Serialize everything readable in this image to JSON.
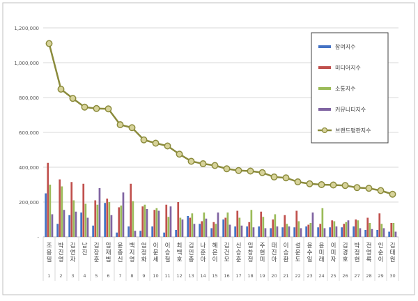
{
  "chart_data": {
    "type": "bar",
    "categories": [
      {
        "rank": "1",
        "name": "조용필"
      },
      {
        "rank": "2",
        "name": "박진영"
      },
      {
        "rank": "3",
        "name": "김연자"
      },
      {
        "rank": "4",
        "name": "남진"
      },
      {
        "rank": "5",
        "name": "김장훈"
      },
      {
        "rank": "6",
        "name": "임재범"
      },
      {
        "rank": "7",
        "name": "윤종신"
      },
      {
        "rank": "8",
        "name": "백지영"
      },
      {
        "rank": "9",
        "name": "엄정화"
      },
      {
        "rank": "10",
        "name": "이문세"
      },
      {
        "rank": "11",
        "name": "이승철"
      },
      {
        "rank": "12",
        "name": "최백호"
      },
      {
        "rank": "13",
        "name": "김민종"
      },
      {
        "rank": "14",
        "name": "나훈아"
      },
      {
        "rank": "15",
        "name": "혜은이"
      },
      {
        "rank": "16",
        "name": "김건모"
      },
      {
        "rank": "17",
        "name": "신승훈"
      },
      {
        "rank": "18",
        "name": "임창정"
      },
      {
        "rank": "19",
        "name": "주현미"
      },
      {
        "rank": "20",
        "name": "태진아"
      },
      {
        "rank": "21",
        "name": "이승환"
      },
      {
        "rank": "22",
        "name": "설운도"
      },
      {
        "rank": "23",
        "name": "윤수일"
      },
      {
        "rank": "24",
        "name": "윤미래"
      },
      {
        "rank": "25",
        "name": "이미자"
      },
      {
        "rank": "26",
        "name": "김경호"
      },
      {
        "rank": "27",
        "name": "박정현"
      },
      {
        "rank": "28",
        "name": "전영록"
      },
      {
        "rank": "29",
        "name": "인순이"
      },
      {
        "rank": "30",
        "name": "김태원"
      }
    ],
    "series": [
      {
        "name": "참여지수",
        "color": "#4472C4",
        "kind": "bar",
        "values": [
          250000,
          75000,
          125000,
          140000,
          65000,
          195000,
          25000,
          60000,
          35000,
          60000,
          25000,
          40000,
          120000,
          75000,
          50000,
          100000,
          60000,
          60000,
          60000,
          50000,
          55000,
          55000,
          60000,
          55000,
          55000,
          55000,
          60000,
          40000,
          40000,
          30000
        ]
      },
      {
        "name": "미디어지수",
        "color": "#C0504D",
        "kind": "bar",
        "values": [
          425000,
          330000,
          315000,
          305000,
          210000,
          220000,
          170000,
          305000,
          175000,
          155000,
          185000,
          200000,
          110000,
          90000,
          85000,
          110000,
          150000,
          85000,
          145000,
          100000,
          125000,
          150000,
          70000,
          75000,
          95000,
          75000,
          100000,
          110000,
          135000,
          80000
        ]
      },
      {
        "name": "소통지수",
        "color": "#9BBB59",
        "kind": "bar",
        "values": [
          300000,
          290000,
          210000,
          190000,
          185000,
          200000,
          180000,
          205000,
          185000,
          165000,
          115000,
          110000,
          135000,
          140000,
          75000,
          140000,
          110000,
          155000,
          115000,
          130000,
          75000,
          90000,
          80000,
          165000,
          90000,
          85000,
          95000,
          80000,
          75000,
          80000
        ]
      },
      {
        "name": "커뮤니티지수",
        "color": "#8064A2",
        "kind": "bar",
        "values": [
          130000,
          155000,
          145000,
          110000,
          280000,
          125000,
          255000,
          35000,
          160000,
          150000,
          175000,
          100000,
          75000,
          105000,
          140000,
          70000,
          65000,
          55000,
          50000,
          60000,
          60000,
          50000,
          140000,
          50000,
          60000,
          95000,
          50000,
          45000,
          50000,
          30000
        ]
      },
      {
        "name": "브랜드평판지수",
        "color": "#8B8B3C",
        "kind": "line",
        "values": [
          1110000,
          848000,
          795000,
          745000,
          737000,
          735000,
          644000,
          627000,
          557000,
          538000,
          522000,
          475000,
          434000,
          420000,
          410000,
          391000,
          381000,
          378000,
          369000,
          344000,
          339000,
          316000,
          305000,
          300000,
          298000,
          295000,
          283000,
          279000,
          266000,
          245000
        ]
      }
    ],
    "yaxis": {
      "min": 0,
      "max": 1200000,
      "ticks": [
        "-",
        "200,000",
        "400,000",
        "600,000",
        "800,000",
        "1,000,000",
        "1,200,000"
      ]
    },
    "grid": true,
    "legend_position": "top-right"
  }
}
